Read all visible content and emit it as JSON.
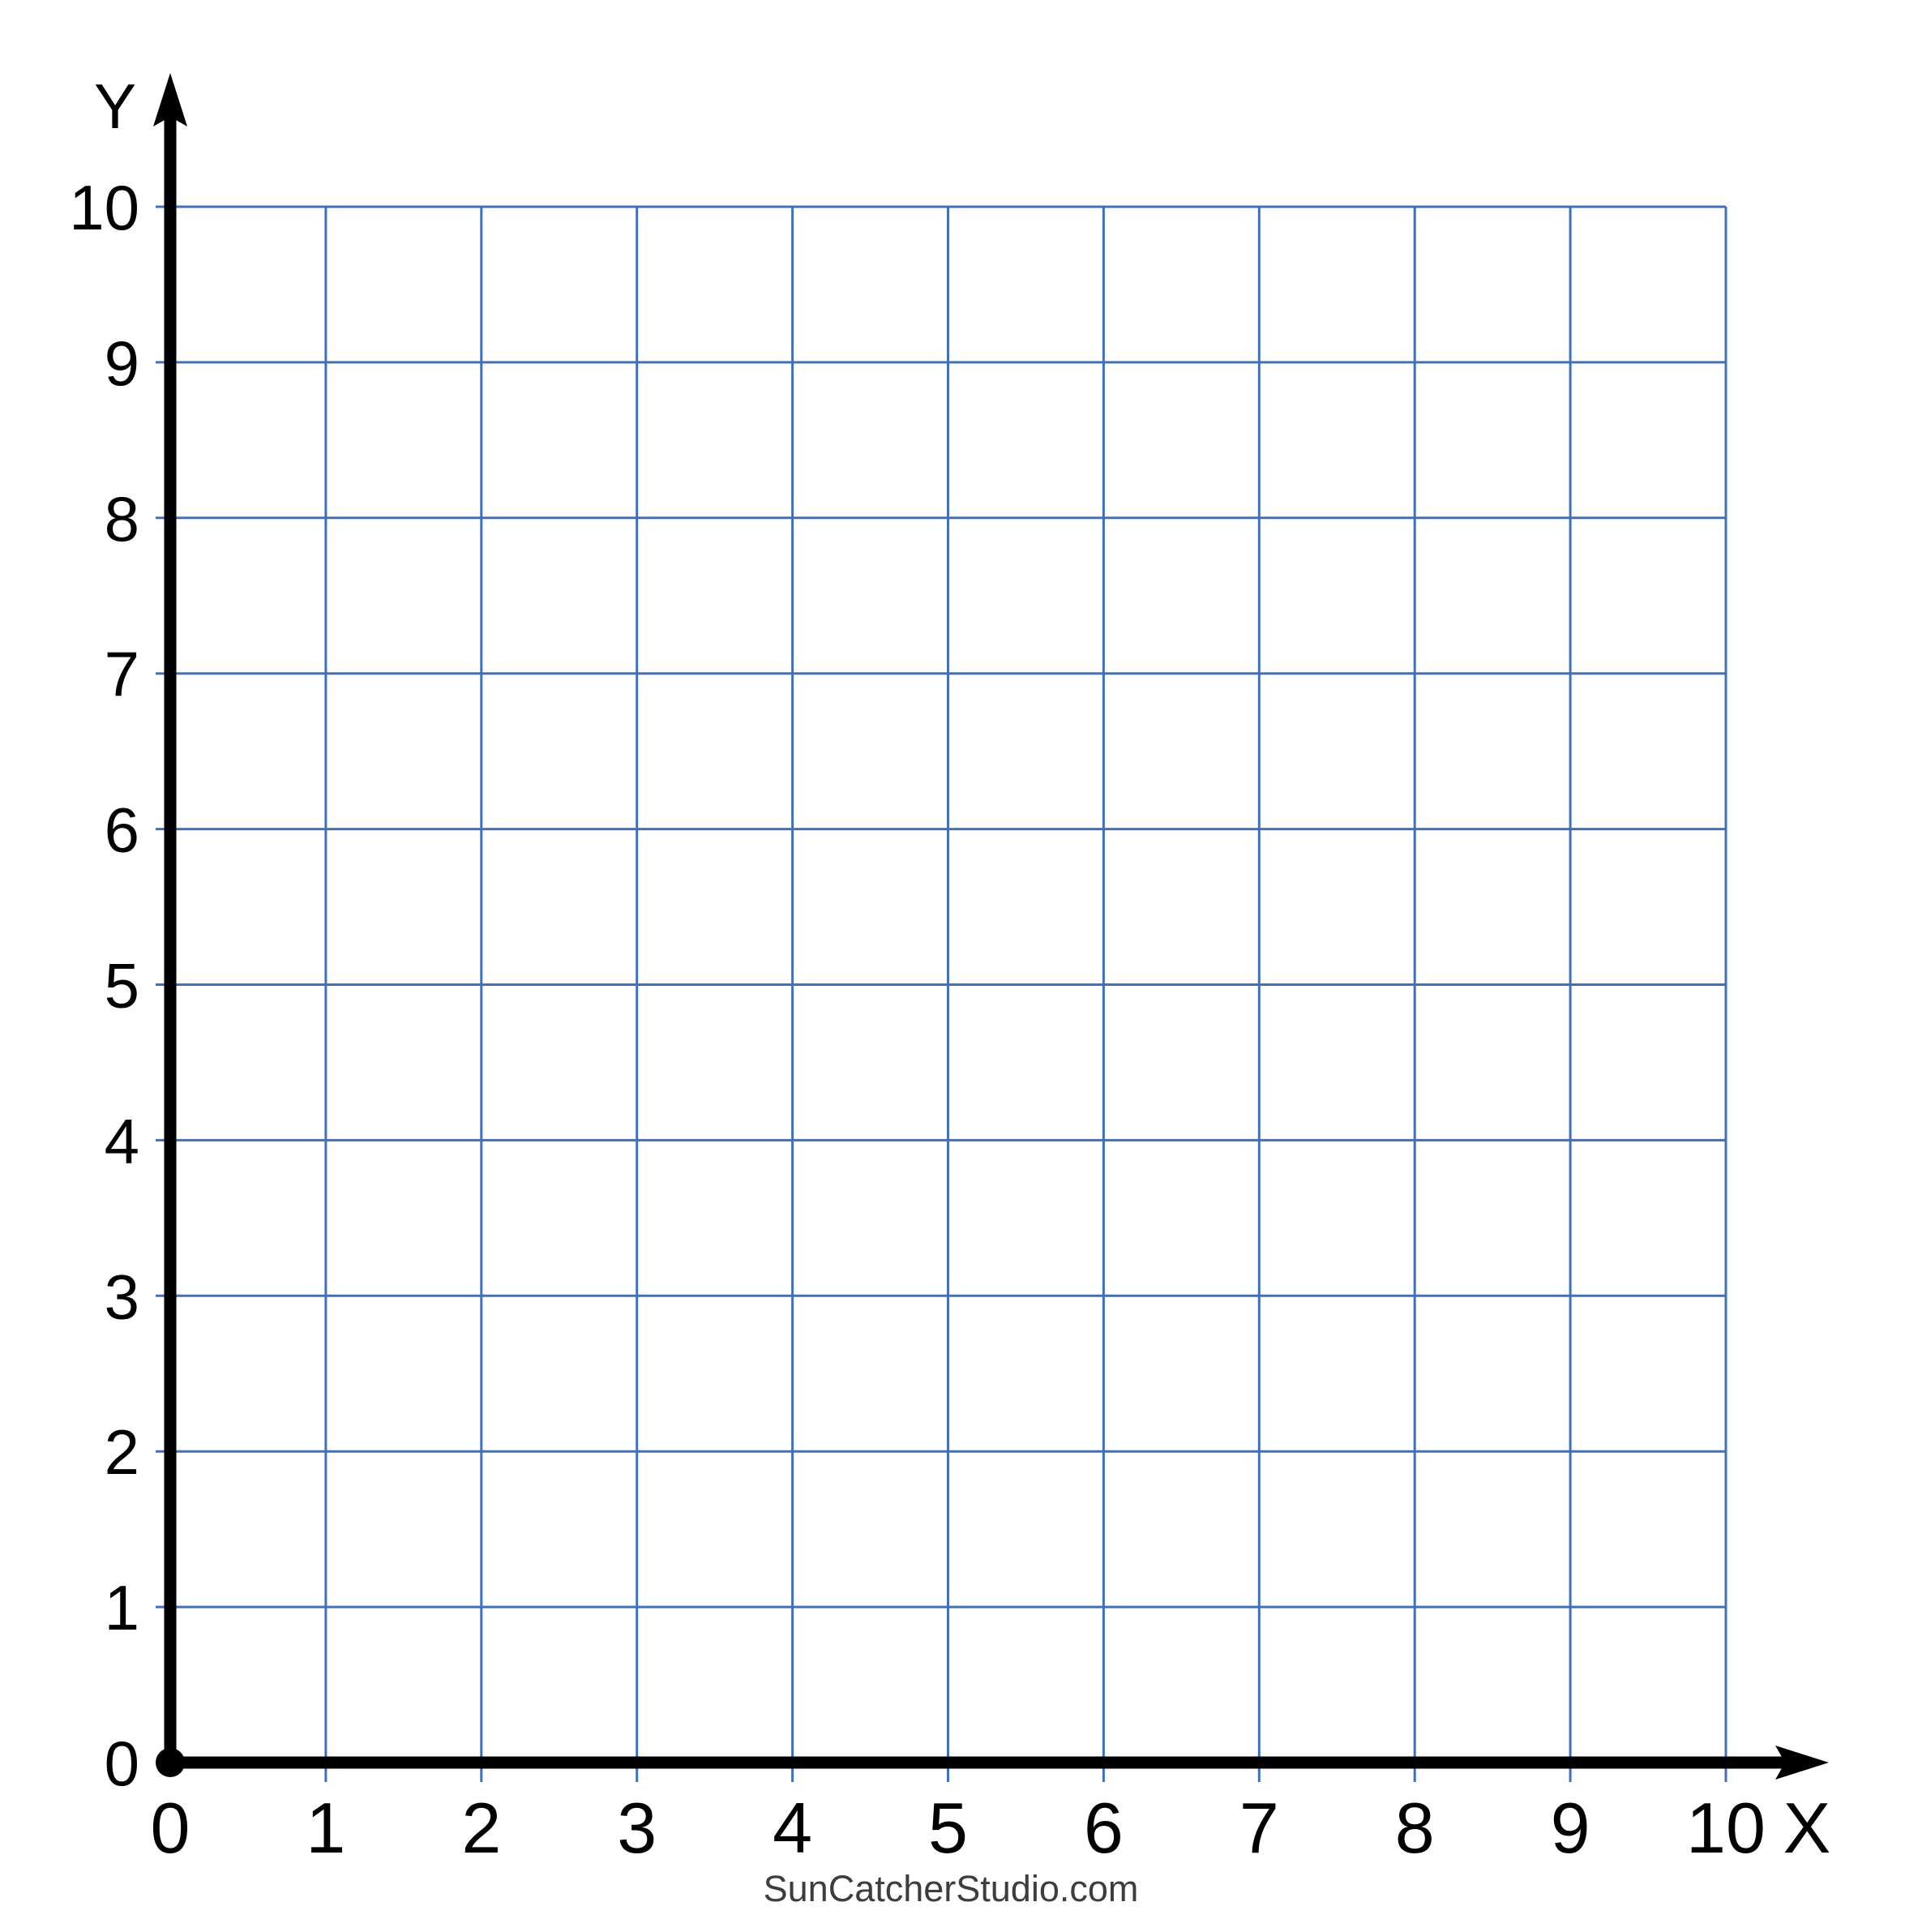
{
  "watermark": {
    "text": "SunCatcherStudio.com",
    "color": "#3d3d3d"
  },
  "chart_data": {
    "type": "scatter",
    "title": "",
    "subtitle": "",
    "xlabel": "X",
    "ylabel": "Y",
    "xlim": [
      0,
      10
    ],
    "ylim": [
      0,
      10
    ],
    "x_tick_labels": [
      "0",
      "1",
      "2",
      "3",
      "4",
      "5",
      "6",
      "7",
      "8",
      "9",
      "10"
    ],
    "y_tick_labels": [
      "0",
      "1",
      "2",
      "3",
      "4",
      "5",
      "6",
      "7",
      "8",
      "9",
      "10"
    ],
    "grid": true,
    "grid_color": "#4070BC",
    "axis_color": "#000000",
    "tick_label_color": "#000000",
    "legend": false,
    "series": []
  }
}
